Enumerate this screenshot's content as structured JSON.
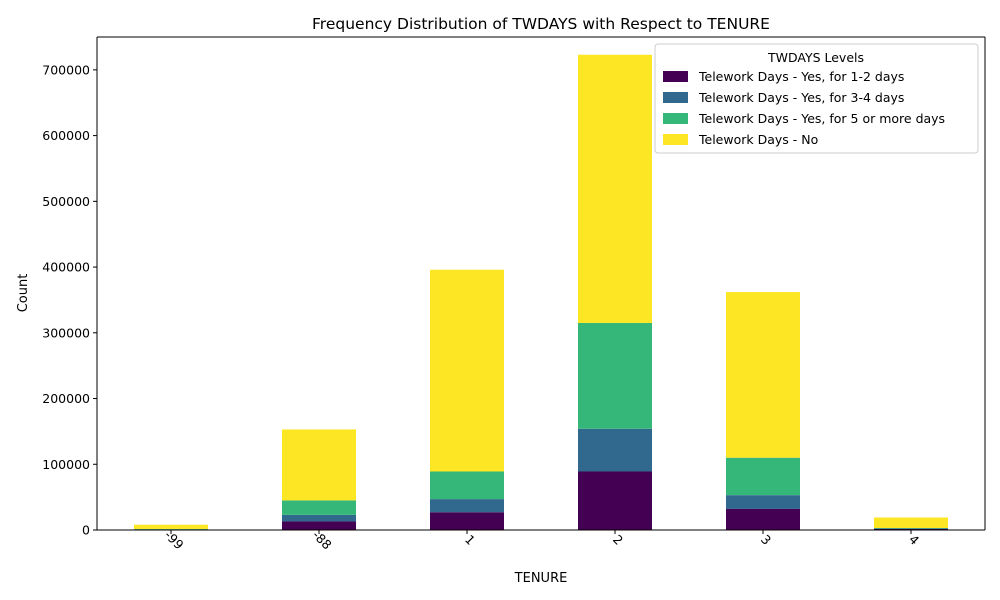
{
  "chart_data": {
    "type": "bar",
    "stacked": true,
    "title": "Frequency Distribution of TWDAYS with Respect to TENURE",
    "xlabel": "TENURE",
    "ylabel": "Count",
    "categories": [
      "-99",
      "-88",
      "1",
      "2",
      "3",
      "4"
    ],
    "ylim": [
      0,
      750000
    ],
    "yticks": [
      0,
      100000,
      200000,
      300000,
      400000,
      500000,
      600000,
      700000
    ],
    "legend_title": "TWDAYS Levels",
    "legend_position": "top-right",
    "grid": false,
    "series": [
      {
        "name": "Telework Days - Yes, for 1-2 days",
        "color": "#440154",
        "values": [
          700,
          13000,
          27000,
          89000,
          32000,
          1500
        ]
      },
      {
        "name": "Telework Days - Yes, for 3-4 days",
        "color": "#31688e",
        "values": [
          300,
          10000,
          20000,
          65000,
          21000,
          700
        ]
      },
      {
        "name": "Telework Days - Yes, for 5 or more days",
        "color": "#35b779",
        "values": [
          500,
          22000,
          42000,
          161000,
          57000,
          800
        ]
      },
      {
        "name": "Telework Days - No",
        "color": "#fde725",
        "values": [
          6500,
          108000,
          307000,
          408000,
          252000,
          16000
        ]
      }
    ]
  }
}
